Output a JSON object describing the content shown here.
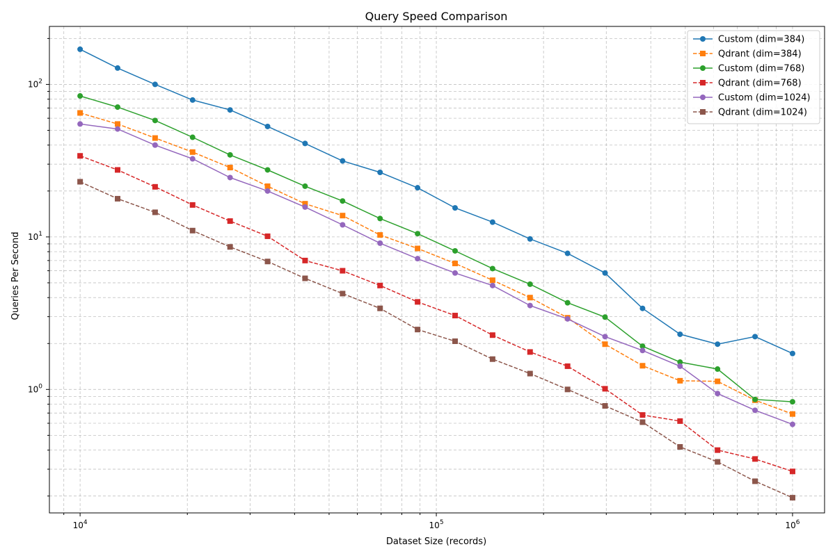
{
  "chart_data": {
    "type": "line",
    "title": "Query Speed Comparison",
    "xlabel": "Dataset Size (records)",
    "ylabel": "Queries Per Second",
    "xscale": "log",
    "yscale": "log",
    "xlim": [
      8200,
      1230000
    ],
    "ylim": [
      0.155,
      240
    ],
    "grid": "both major and minor, dashed",
    "legend_position": "top-right",
    "x_ticks": [
      {
        "value": 10000,
        "base": "10",
        "exp": "4"
      },
      {
        "value": 100000,
        "base": "10",
        "exp": "5"
      },
      {
        "value": 1000000,
        "base": "10",
        "exp": "6"
      }
    ],
    "y_ticks": [
      {
        "value": 1,
        "base": "10",
        "exp": "0"
      },
      {
        "value": 10,
        "base": "10",
        "exp": "1"
      },
      {
        "value": 100,
        "base": "10",
        "exp": "2"
      }
    ],
    "x": [
      10000,
      12743,
      16238,
      20691,
      26367,
      33598,
      42813,
      54556,
      69519,
      88587,
      112884,
      143845,
      183298,
      233572,
      297635,
      379269,
      483293,
      615848,
      784760,
      1000000
    ],
    "series": [
      {
        "name": "Custom (dim=384)",
        "color": "#1f77b4",
        "marker": "circle",
        "linestyle": "solid",
        "values": [
          170,
          128,
          100,
          79,
          68,
          53,
          41,
          31.5,
          26.5,
          21,
          15.5,
          12.5,
          9.7,
          7.8,
          5.8,
          3.4,
          2.3,
          1.98,
          2.22,
          1.72
        ]
      },
      {
        "name": "Qdrant (dim=384)",
        "color": "#ff7f0e",
        "marker": "square",
        "linestyle": "dashed",
        "values": [
          65,
          55,
          44.5,
          36,
          28.5,
          21.5,
          16.5,
          13.8,
          10.3,
          8.4,
          6.7,
          5.2,
          4.0,
          2.95,
          1.98,
          1.43,
          1.14,
          1.13,
          0.85,
          0.69
        ]
      },
      {
        "name": "Custom (dim=768)",
        "color": "#2ca02c",
        "marker": "circle",
        "linestyle": "solid",
        "values": [
          84,
          71,
          58,
          45,
          34.5,
          27.5,
          21.5,
          17.2,
          13.2,
          10.5,
          8.1,
          6.2,
          4.9,
          3.7,
          2.98,
          1.92,
          1.51,
          1.36,
          0.86,
          0.83
        ]
      },
      {
        "name": "Qdrant (dim=768)",
        "color": "#d62728",
        "marker": "square",
        "linestyle": "dashed",
        "values": [
          34,
          27.5,
          21.3,
          16.2,
          12.7,
          10.1,
          7.0,
          6.0,
          4.8,
          3.75,
          3.05,
          2.27,
          1.76,
          1.42,
          1.01,
          0.68,
          0.62,
          0.4,
          0.35,
          0.29
        ]
      },
      {
        "name": "Custom (dim=1024)",
        "color": "#9467bd",
        "marker": "circle",
        "linestyle": "solid",
        "values": [
          55,
          51,
          40,
          32.5,
          24.5,
          20,
          15.7,
          12,
          9.1,
          7.2,
          5.8,
          4.8,
          3.55,
          2.9,
          2.22,
          1.8,
          1.42,
          0.94,
          0.73,
          0.59
        ]
      },
      {
        "name": "Qdrant (dim=1024)",
        "color": "#8c564b",
        "marker": "square",
        "linestyle": "dashed",
        "values": [
          23,
          17.8,
          14.5,
          11,
          8.6,
          6.9,
          5.35,
          4.25,
          3.4,
          2.47,
          2.07,
          1.58,
          1.27,
          1.0,
          0.78,
          0.61,
          0.42,
          0.335,
          0.25,
          0.195
        ]
      }
    ]
  }
}
